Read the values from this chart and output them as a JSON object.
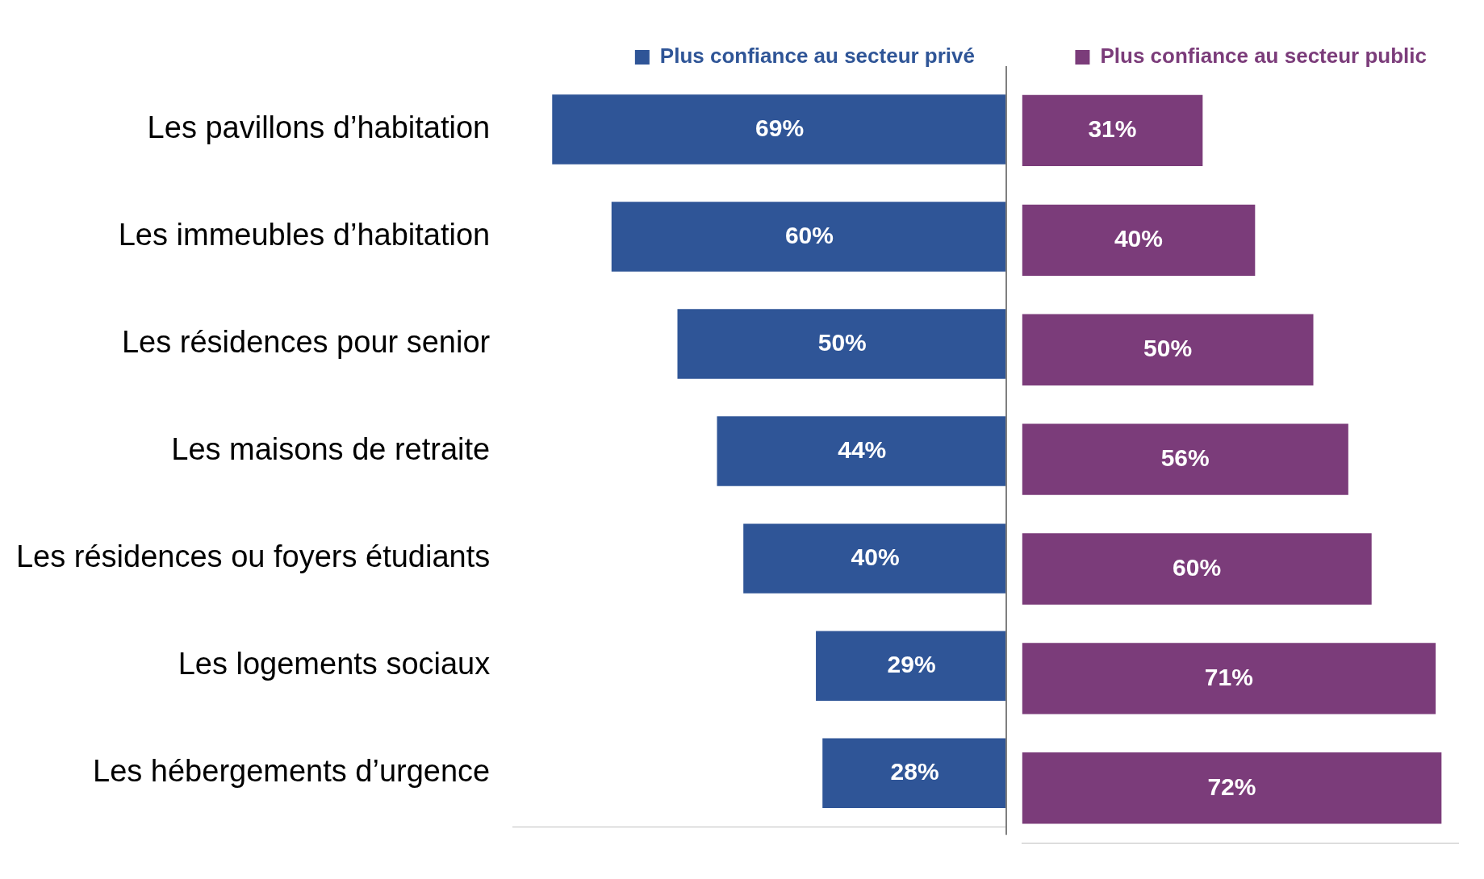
{
  "chart_data": [
    {
      "type": "bar",
      "orientation": "horizontal",
      "legend": "top right",
      "tick_labels": "y",
      "xlim": [
        75,
        0
      ],
      "categories": [
        "Les pavillons d’habitation",
        "Les immeubles d’habitation",
        "Les résidences pour senior",
        "Les maisons de retraite",
        "Les résidences ou foyers étudiants",
        "Les logements sociaux",
        "Les hébergements d’urgence"
      ],
      "series": [
        {
          "name": "Plus confiance au secteur privé",
          "color": "#2f5597",
          "values": [
            69,
            60,
            50,
            44,
            40,
            29,
            28
          ],
          "value_labels": [
            "69%",
            "60%",
            "50%",
            "44%",
            "40%",
            "29%",
            "28%"
          ]
        }
      ],
      "ref_lines": [
        {
          "axis": "x",
          "value": 0,
          "color": "#7f7f7f"
        }
      ]
    },
    {
      "type": "bar",
      "orientation": "horizontal",
      "legend": "top right",
      "tick_labels": "y",
      "xlim": [
        0,
        75
      ],
      "categories": [
        null,
        null,
        null,
        null,
        null,
        null,
        null
      ],
      "series": [
        {
          "name": "Plus confiance au secteur public",
          "color": "#7b3c7a",
          "values": [
            31,
            40,
            50,
            56,
            60,
            71,
            72
          ],
          "value_labels": [
            "31%",
            "40%",
            "50%",
            "56%",
            "60%",
            "71%",
            "72%"
          ]
        }
      ]
    }
  ]
}
